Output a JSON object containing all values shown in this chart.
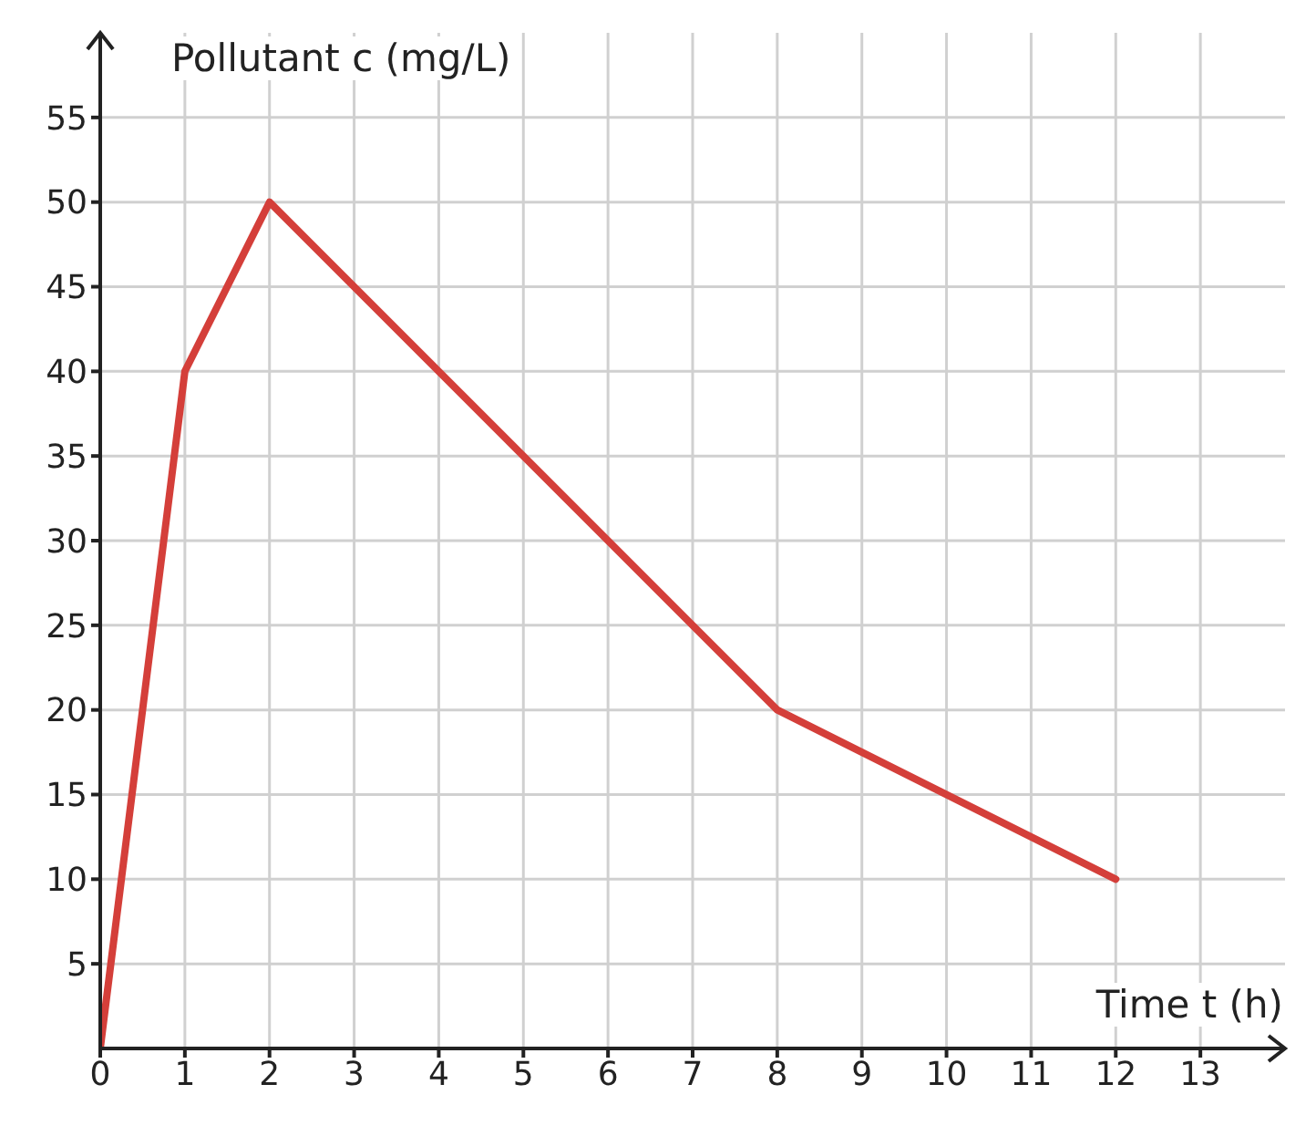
{
  "chart_data": {
    "type": "line",
    "xlabel": "Time t (h)",
    "ylabel": "Pollutant c (mg/L)",
    "x": [
      0,
      1,
      2,
      8,
      12
    ],
    "series": [
      {
        "color": "#d43f3a",
        "values": [
          0,
          40,
          50,
          20,
          10
        ]
      }
    ],
    "xlim": [
      0,
      14
    ],
    "ylim": [
      0,
      60
    ],
    "xticks": [
      0,
      1,
      2,
      3,
      4,
      5,
      6,
      7,
      8,
      9,
      10,
      11,
      12,
      13
    ],
    "yticks": [
      5,
      10,
      15,
      20,
      25,
      30,
      35,
      40,
      45,
      50,
      55
    ],
    "grid": true,
    "legend": false,
    "marker": "none",
    "line_style": "solid"
  }
}
